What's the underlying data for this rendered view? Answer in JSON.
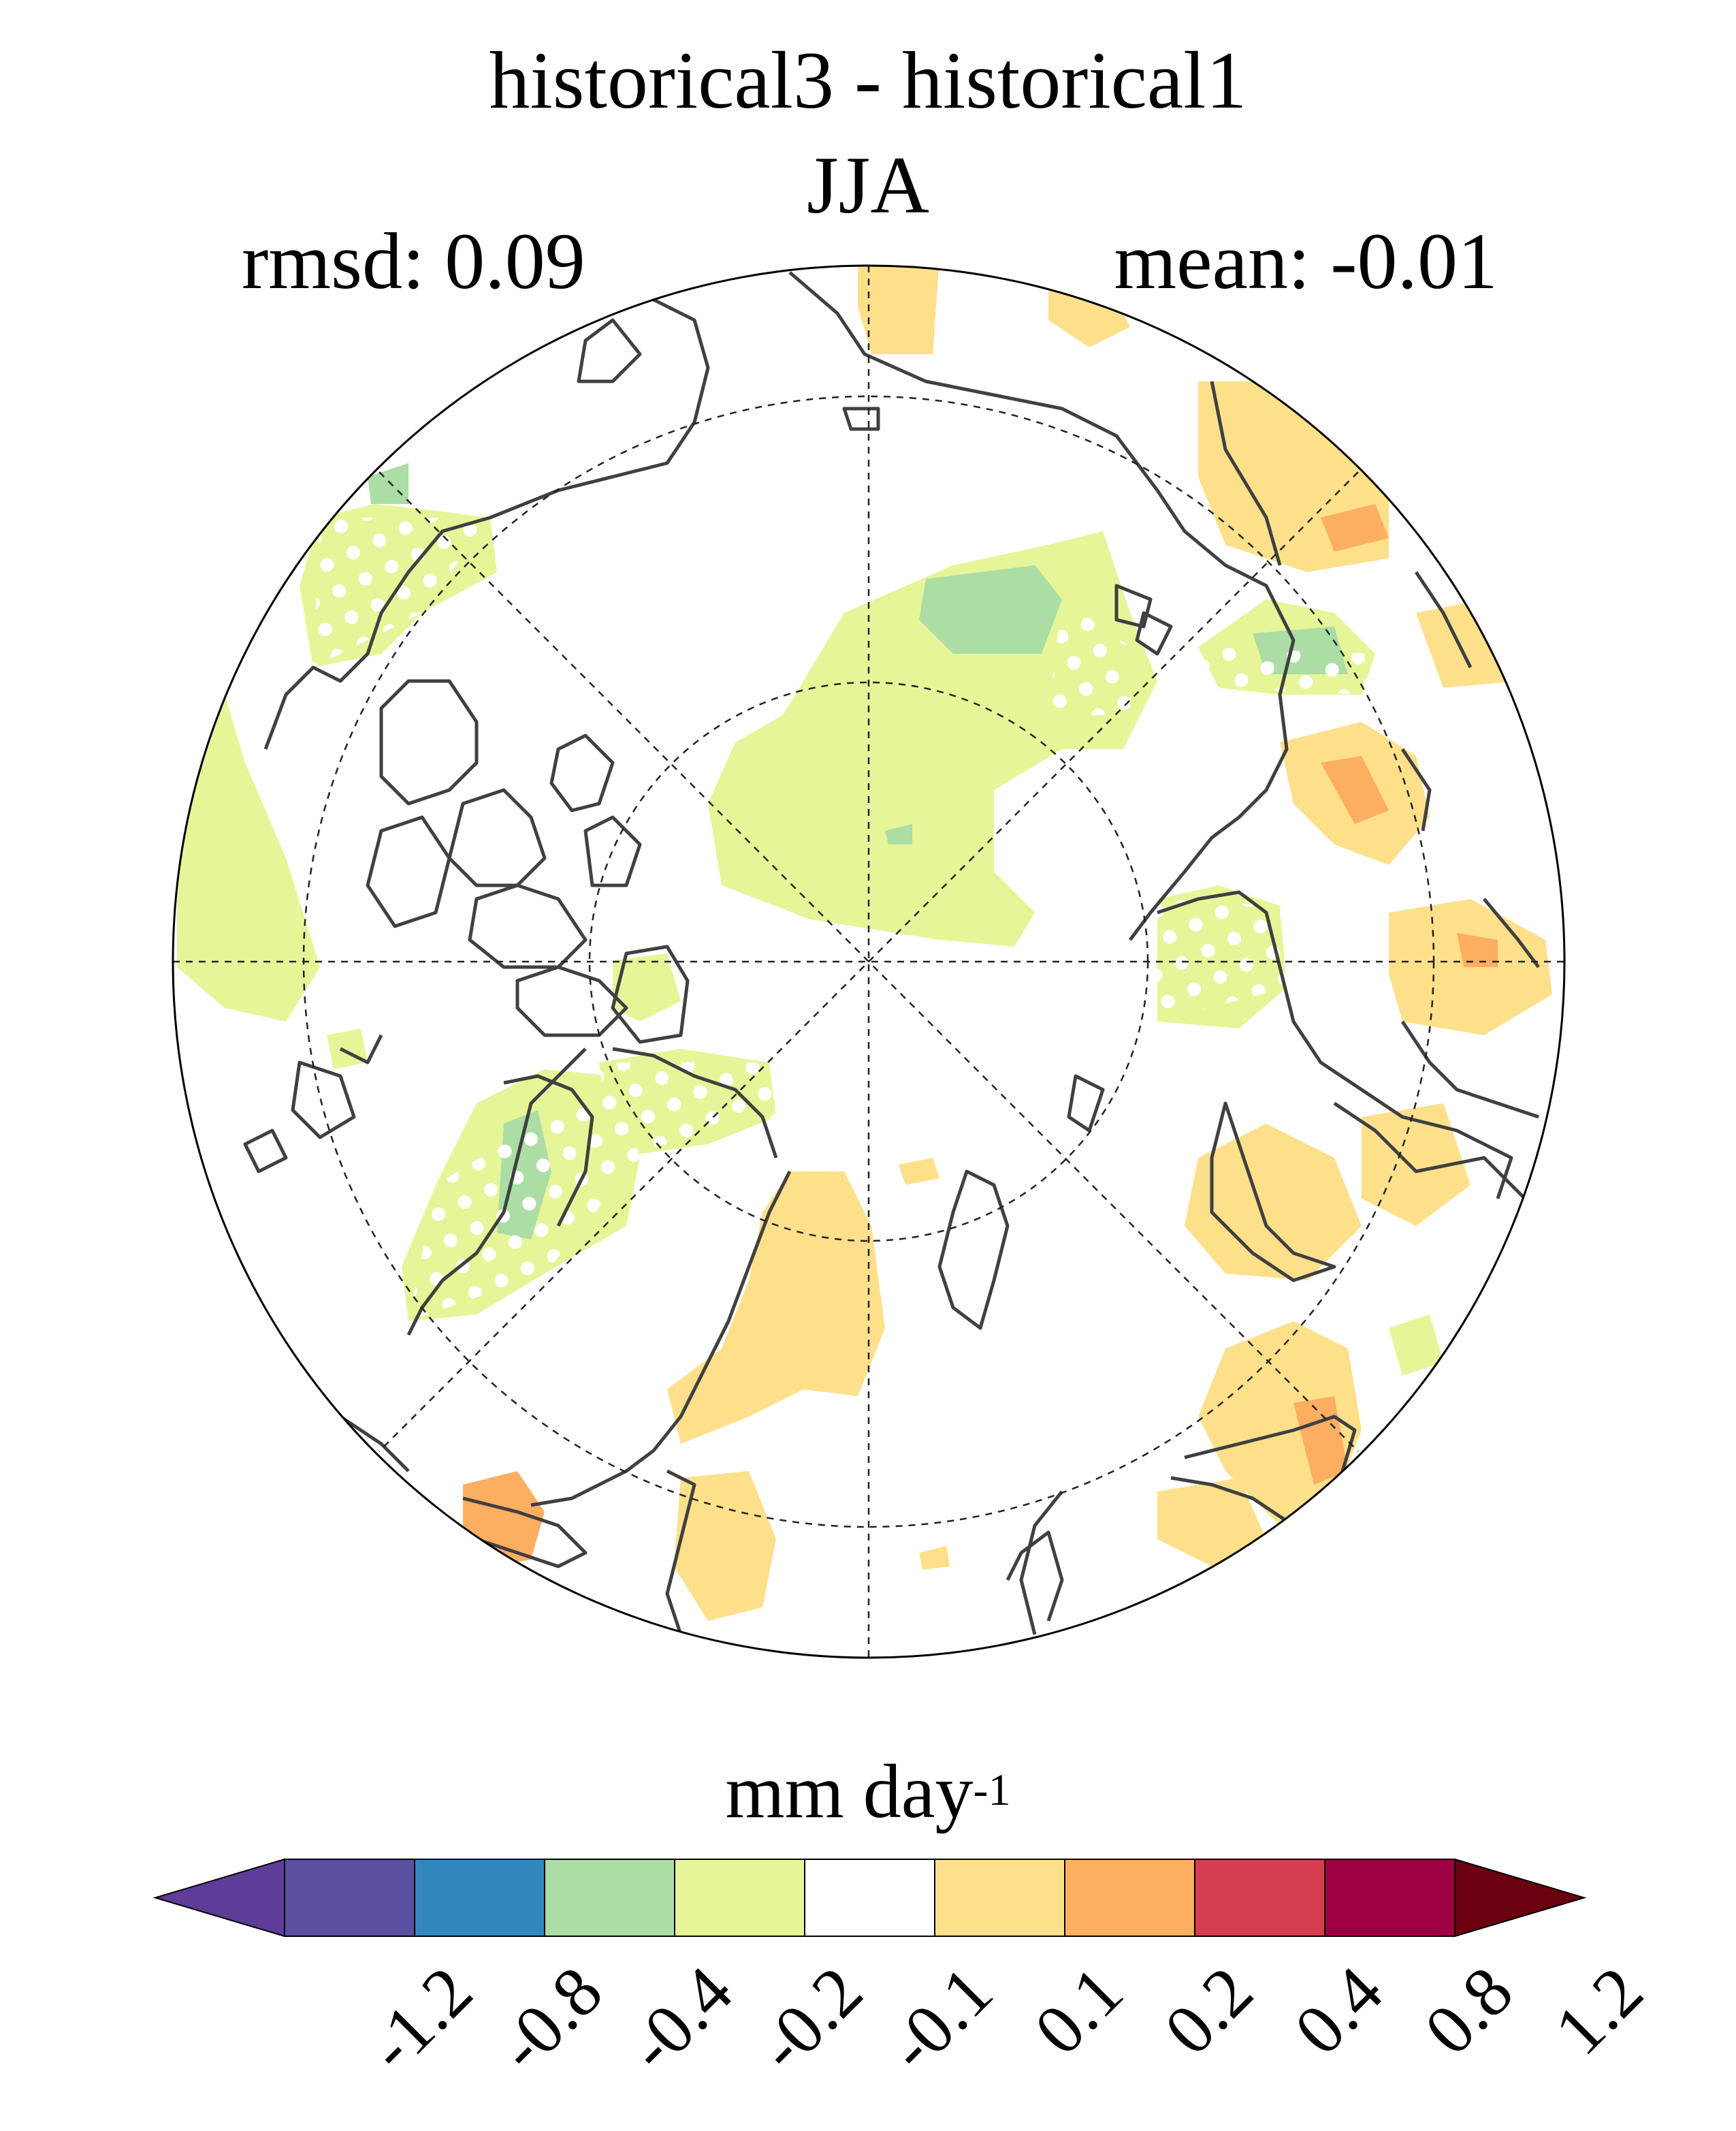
{
  "title": "historical3 - historical1",
  "season": "JJA",
  "stats": {
    "rmsd_label": "rmsd: 0.09",
    "mean_label": "mean: -0.01"
  },
  "colorbar": {
    "units_base": "mm day",
    "units_exp": "-1",
    "levels": [
      "-1.2",
      "-0.8",
      "-0.4",
      "-0.2",
      "-0.1",
      "0.1",
      "0.2",
      "0.4",
      "0.8",
      "1.2"
    ],
    "colors": [
      "#5e3c99",
      "#5a50a0",
      "#3288bd",
      "#abdda4",
      "#e6f598",
      "#ffffff",
      "#fee08b",
      "#fdae61",
      "#d53e4f",
      "#9e0142",
      "#6b0010"
    ],
    "under_color": "#5e3c99",
    "over_color": "#6b0010"
  },
  "map": {
    "projection": "north-polar-stereographic",
    "colors": {
      "light_green": "#e6f598",
      "green": "#abdda4",
      "light_orange": "#fee08b",
      "orange": "#fdae61",
      "red": "#d53e4f",
      "coast": "#404040"
    },
    "stippling": "white-dots",
    "graticule": "dashed"
  }
}
